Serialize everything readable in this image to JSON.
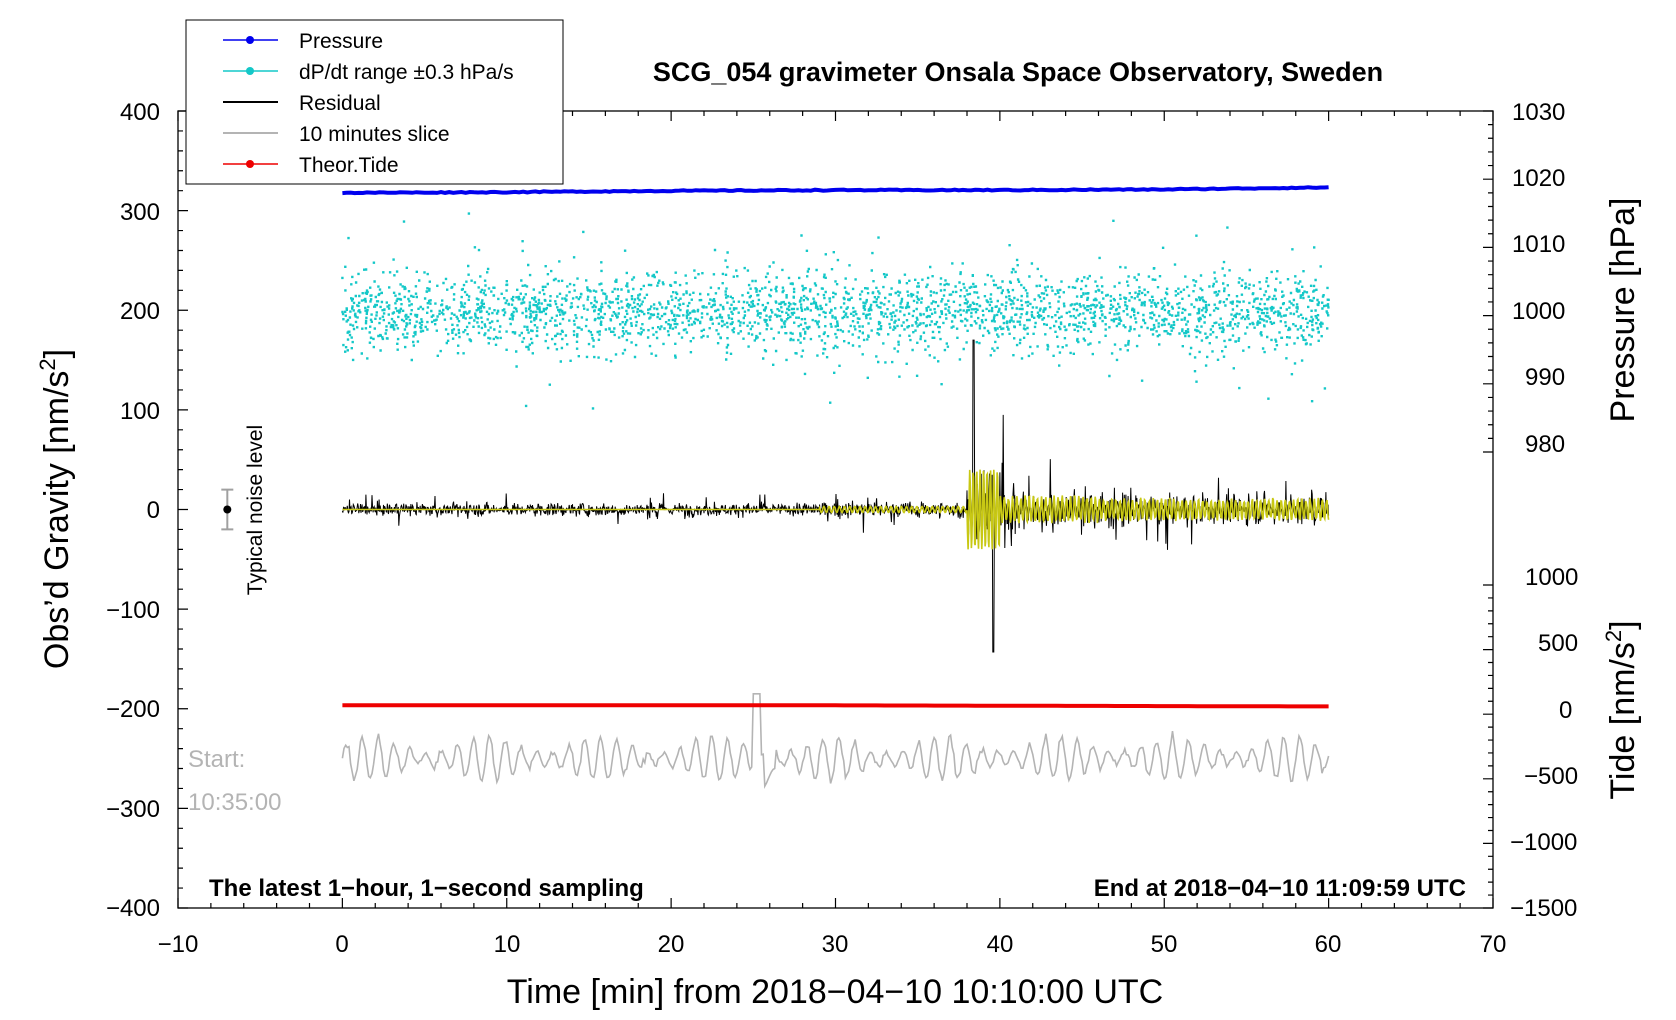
{
  "chart_data": {
    "type": "scatter",
    "title": "SCG_054 gravimeter Onsala Space Observatory, Sweden",
    "xlabel": "Time [min] from 2018−04−10 10:10:00 UTC",
    "ylabel_main": "Obs’d Gravity [nm/s",
    "ylabel_pressure": "Pressure [hPa]",
    "ylabel_tide": "Tide [nm/s",
    "sup2": "2",
    "ylabel_close": "]",
    "xlim": [
      -10,
      70
    ],
    "ylim": [
      -400,
      400
    ],
    "pressure_lim": [
      980,
      1030
    ],
    "tide_lim": [
      -1500,
      1000
    ],
    "x_ticks": [
      "−10",
      "0",
      "10",
      "20",
      "30",
      "40",
      "50",
      "60",
      "70"
    ],
    "y_ticks": [
      "400",
      "300",
      "200",
      "100",
      "0",
      "−100",
      "−200",
      "−300",
      "−400"
    ],
    "pressure_ticks": [
      "1030",
      "1020",
      "1010",
      "1000",
      "990",
      "980"
    ],
    "tide_ticks": [
      "1000",
      "500",
      "0",
      "−500",
      "−1000",
      "−1500"
    ],
    "legend": [
      "Pressure",
      "dP/dt range ±0.3 hPa/s",
      "Residual",
      "10 minutes slice",
      "Theor.Tide"
    ],
    "annotations": {
      "noise": "Typical noise level",
      "start_label": "Start:",
      "start_time": "10:35:00",
      "bottom_left": "The latest 1−hour, 1−second sampling",
      "bottom_right": "End at 2018−04−10 11:09:59 UTC"
    },
    "noise_bar": {
      "x": -7,
      "y": 0,
      "err": 20
    },
    "series": [
      {
        "name": "Pressure",
        "axis": "pressure",
        "x": [
          0,
          10,
          20,
          30,
          40,
          50,
          60
        ],
        "values": [
          1018.0,
          1018.1,
          1018.3,
          1018.4,
          1018.4,
          1018.5,
          1018.8
        ]
      },
      {
        "name": "Theor.Tide",
        "axis": "tide",
        "x": [
          0,
          25,
          60
        ],
        "values": [
          70,
          70,
          60
        ]
      },
      {
        "name": "dP/dt range ±0.3 hPa/s",
        "axis": "main",
        "center": 200,
        "spread": 160,
        "points": 2800
      },
      {
        "name": "Residual",
        "axis": "main",
        "note": "1-second residual with earthquake signal near minute 38–40, max ~170 nm/s2, min ~-143 nm/s2"
      },
      {
        "name": "10 minutes slice",
        "axis": "main",
        "center": -250,
        "note": "10-minute slice starting 10:35:00 stretched over the hour"
      }
    ]
  },
  "colors": {
    "pressure": "#0000ee",
    "dpdt": "#14c8c8",
    "residual": "#000000",
    "yellow": "#c8c814",
    "slice": "#b4b4b4",
    "tide": "#ee0000",
    "noise": "#a0a0a0"
  }
}
